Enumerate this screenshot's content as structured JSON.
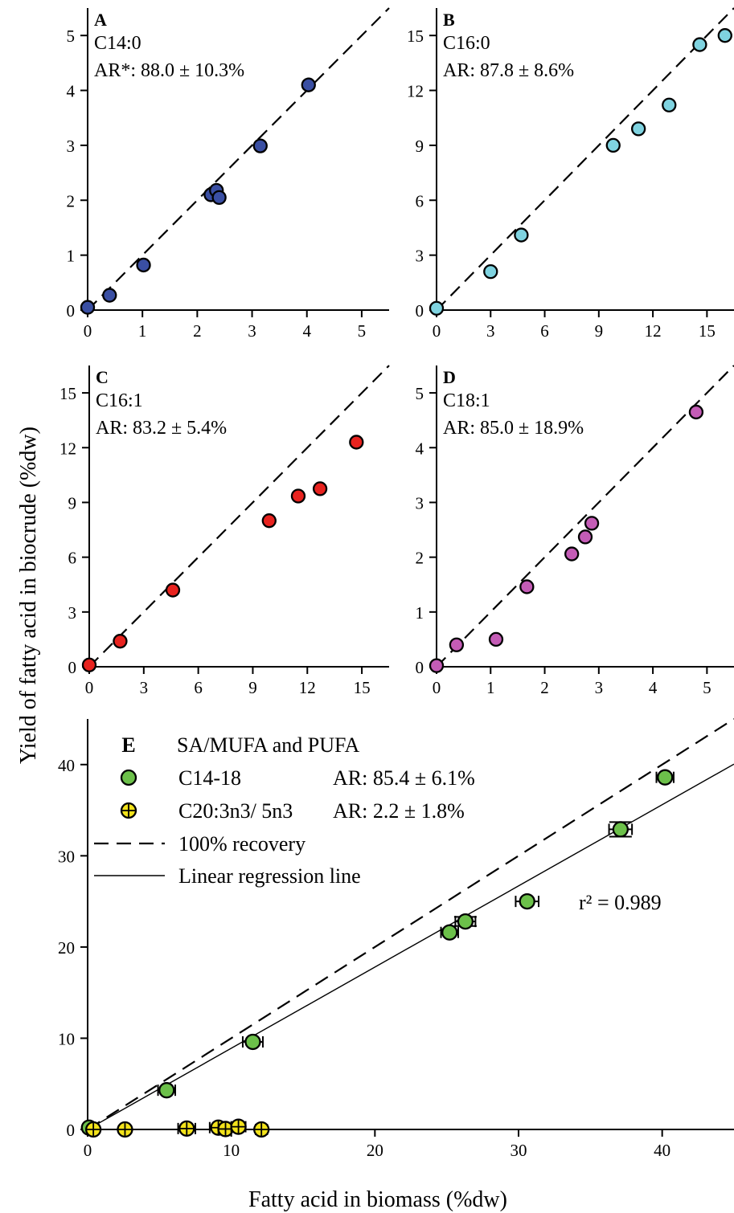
{
  "chart_data": [
    {
      "panel": "A",
      "type": "scatter",
      "annotation_lines": [
        "C14:0",
        "AR*: 88.0 ± 10.3%"
      ],
      "xlim": [
        0,
        5.5
      ],
      "ylim": [
        0,
        5.5
      ],
      "x_ticks": [
        0,
        1,
        2,
        3,
        4,
        5
      ],
      "y_ticks": [
        0,
        1,
        2,
        3,
        4,
        5
      ],
      "grid": false,
      "point_color": "#3a4fa3",
      "reference_line": "100% recovery",
      "points": [
        {
          "x": 0.0,
          "y": 0.05
        },
        {
          "x": 0.4,
          "y": 0.27
        },
        {
          "x": 1.02,
          "y": 0.82
        },
        {
          "x": 2.25,
          "y": 2.1
        },
        {
          "x": 2.35,
          "y": 2.18
        },
        {
          "x": 2.4,
          "y": 2.05
        },
        {
          "x": 3.15,
          "y": 2.99
        },
        {
          "x": 4.03,
          "y": 4.1
        }
      ]
    },
    {
      "panel": "B",
      "type": "scatter",
      "annotation_lines": [
        "C16:0",
        "AR: 87.8 ± 8.6%"
      ],
      "xlim": [
        0,
        16.5
      ],
      "ylim": [
        0,
        16.5
      ],
      "x_ticks": [
        0,
        3,
        6,
        9,
        12,
        15
      ],
      "y_ticks": [
        0,
        3,
        6,
        9,
        12,
        15
      ],
      "grid": false,
      "point_color": "#7fd3e0",
      "reference_line": "100% recovery",
      "points": [
        {
          "x": 0.0,
          "y": 0.1
        },
        {
          "x": 3.0,
          "y": 2.1
        },
        {
          "x": 4.7,
          "y": 4.1
        },
        {
          "x": 9.8,
          "y": 9.0
        },
        {
          "x": 11.2,
          "y": 9.9
        },
        {
          "x": 12.9,
          "y": 11.2
        },
        {
          "x": 14.6,
          "y": 14.5
        },
        {
          "x": 16.0,
          "y": 15.0
        }
      ]
    },
    {
      "panel": "C",
      "type": "scatter",
      "annotation_lines": [
        "C16:1",
        "AR: 83.2 ± 5.4%"
      ],
      "xlim": [
        0,
        16.5
      ],
      "ylim": [
        0,
        16.5
      ],
      "x_ticks": [
        0,
        3,
        6,
        9,
        12,
        15
      ],
      "y_ticks": [
        0,
        3,
        6,
        9,
        12,
        15
      ],
      "grid": false,
      "point_color": "#e8231f",
      "reference_line": "100% recovery",
      "points": [
        {
          "x": 0.0,
          "y": 0.1
        },
        {
          "x": 1.7,
          "y": 1.4
        },
        {
          "x": 4.6,
          "y": 4.2
        },
        {
          "x": 9.9,
          "y": 8.0
        },
        {
          "x": 11.5,
          "y": 9.35
        },
        {
          "x": 12.7,
          "y": 9.75
        },
        {
          "x": 14.7,
          "y": 12.3
        }
      ]
    },
    {
      "panel": "D",
      "type": "scatter",
      "annotation_lines": [
        "C18:1",
        "AR: 85.0 ± 18.9%"
      ],
      "xlim": [
        0,
        5.5
      ],
      "ylim": [
        0,
        5.5
      ],
      "x_ticks": [
        0,
        1,
        2,
        3,
        4,
        5
      ],
      "y_ticks": [
        0,
        1,
        2,
        3,
        4,
        5
      ],
      "grid": false,
      "point_color": "#c45cb6",
      "reference_line": "100% recovery",
      "points": [
        {
          "x": 0.0,
          "y": 0.02
        },
        {
          "x": 0.37,
          "y": 0.4
        },
        {
          "x": 1.1,
          "y": 0.5
        },
        {
          "x": 1.67,
          "y": 1.46
        },
        {
          "x": 2.5,
          "y": 2.06
        },
        {
          "x": 2.75,
          "y": 2.37
        },
        {
          "x": 2.87,
          "y": 2.62
        },
        {
          "x": 4.8,
          "y": 4.65
        }
      ]
    },
    {
      "panel": "E",
      "type": "scatter",
      "legend_title": "SA/MUFA and PUFA",
      "xlim": [
        0,
        45
      ],
      "ylim": [
        0,
        45
      ],
      "x_ticks": [
        0,
        10,
        20,
        30,
        40
      ],
      "y_ticks": [
        0,
        10,
        20,
        30,
        40
      ],
      "grid": false,
      "legend_position": "top-left",
      "annotation": "r² = 0.989",
      "series": [
        {
          "name": "C14-18",
          "ar": "AR: 85.4 ± 6.1%",
          "color": "#6cc04a",
          "marker": "circle",
          "points": [
            {
              "x": 0.1,
              "y": 0.2,
              "xerr": 0.3
            },
            {
              "x": 5.5,
              "y": 4.3,
              "xerr": 0.6
            },
            {
              "x": 11.5,
              "y": 9.6,
              "xerr": 0.7
            },
            {
              "x": 25.2,
              "y": 21.6,
              "xerr": 0.6
            },
            {
              "x": 26.3,
              "y": 22.8,
              "xerr": 0.7,
              "yerr": 0.5
            },
            {
              "x": 30.6,
              "y": 25.0,
              "xerr": 0.8
            },
            {
              "x": 37.1,
              "y": 32.9,
              "xerr": 0.8,
              "yerr": 0.8
            },
            {
              "x": 40.2,
              "y": 38.6,
              "xerr": 0.6
            }
          ]
        },
        {
          "name": "C20:3n3/ 5n3",
          "ar": "AR: 2.2 ± 1.8%",
          "color": "#f2e21b",
          "marker": "circle-cross",
          "points": [
            {
              "x": 0.4,
              "y": 0.0,
              "xerr": 0.3
            },
            {
              "x": 2.6,
              "y": 0.0,
              "xerr": 0.2
            },
            {
              "x": 6.9,
              "y": 0.1,
              "xerr": 0.6
            },
            {
              "x": 9.1,
              "y": 0.2,
              "xerr": 0.6
            },
            {
              "x": 9.6,
              "y": 0.05,
              "xerr": 0.3
            },
            {
              "x": 10.5,
              "y": 0.3,
              "xerr": 0.5
            },
            {
              "x": 12.1,
              "y": 0.0,
              "xerr": 0.4
            }
          ]
        }
      ],
      "lines": [
        {
          "name": "100% recovery",
          "style": "dashed",
          "slope": 1.0,
          "intercept": 0
        },
        {
          "name": "Linear regression line",
          "style": "solid",
          "slope": 0.89,
          "intercept": 0
        }
      ]
    }
  ],
  "ylabel": "Yield of fatty acid in biocrude (%dw)",
  "xlabel": "Fatty acid in biomass (%dw)"
}
